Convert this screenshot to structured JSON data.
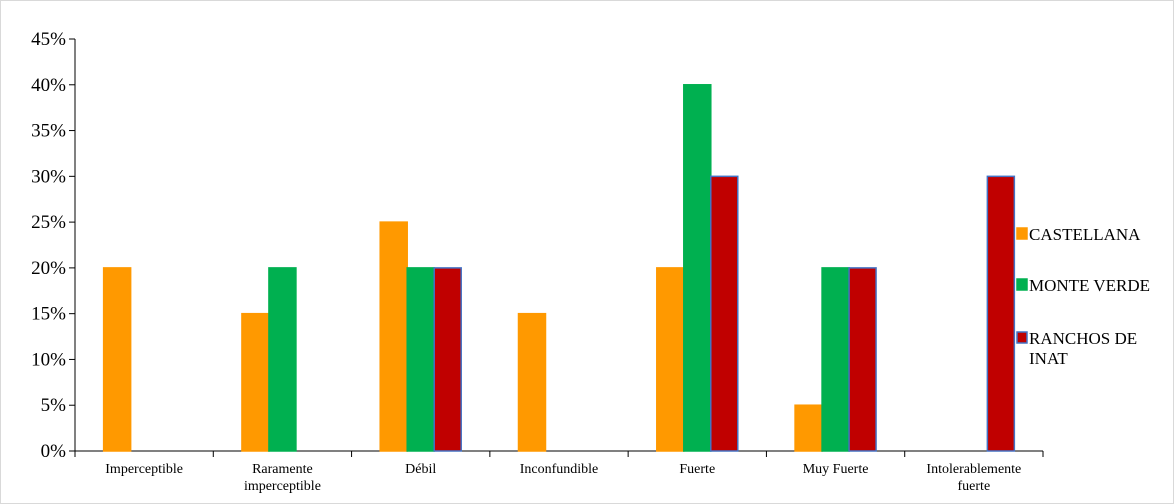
{
  "chart_data": {
    "type": "bar",
    "title": "",
    "xlabel": "",
    "ylabel": "",
    "ylim": [
      0,
      45
    ],
    "ytick_step": 5,
    "y_unit": "%",
    "grid": false,
    "legend_position": "right",
    "categories": [
      [
        "Imperceptible"
      ],
      [
        "Raramente",
        "imperceptible"
      ],
      [
        "Débil"
      ],
      [
        "Inconfundible"
      ],
      [
        "Fuerte"
      ],
      [
        "Muy Fuerte"
      ],
      [
        "Intolerablemente",
        "fuerte"
      ]
    ],
    "series": [
      {
        "name": "CASTELLANA",
        "color": "#ff9900",
        "stroke": "#ff9900",
        "values": [
          20,
          15,
          25,
          15,
          20,
          5,
          null
        ]
      },
      {
        "name": "MONTE VERDE",
        "color": "#00b050",
        "stroke": "#00b050",
        "values": [
          null,
          20,
          20,
          null,
          40,
          20,
          null
        ]
      },
      {
        "name": "RANCHOS DE INAT",
        "legend_lines": [
          "RANCHOS DE",
          "INAT"
        ],
        "color": "#c00000",
        "stroke": "#4472c4",
        "values": [
          null,
          null,
          20,
          null,
          30,
          20,
          30
        ]
      }
    ]
  }
}
